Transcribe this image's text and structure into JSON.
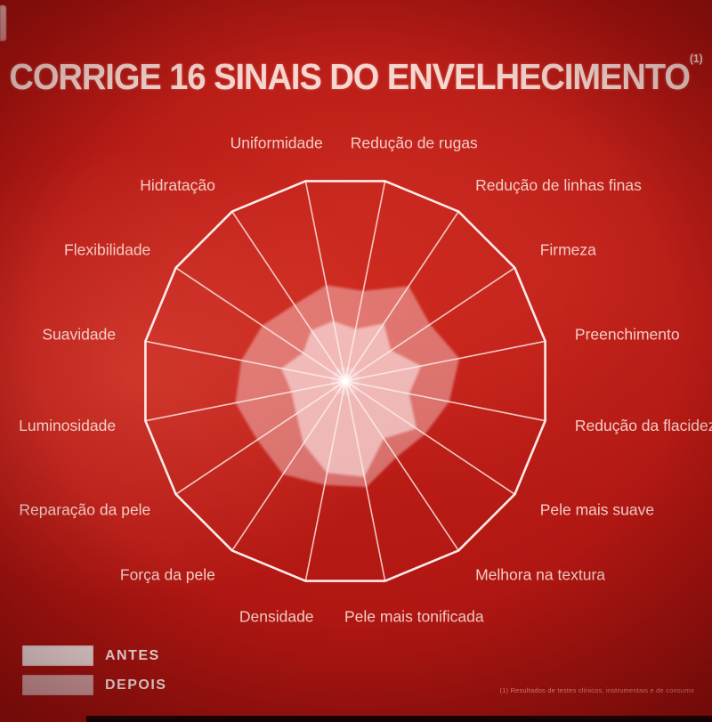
{
  "title": {
    "text": "CORRIGE 16 SINAIS DO ENVELHECIMENTO",
    "superscript": "(1)"
  },
  "footnote": "(1) Resultados de testes clínicos, instrumentais e de consumo",
  "legend": {
    "antes": {
      "label": "ANTES",
      "color": "#f0e0e0"
    },
    "depois": {
      "label": "DEPOIS",
      "color": "#d7a6a8"
    }
  },
  "colors": {
    "background_base": "#a81310",
    "background_light": "#d4423a",
    "background_dark": "#7c0a0b",
    "title_text": "#f6d6cf",
    "axis_label_text": "#f2cdc6",
    "spoke_line": "rgba(255,240,238,0.8)",
    "outline": "rgba(255,246,244,0.95)"
  },
  "chart_data": {
    "type": "radar",
    "title": "CORRIGE 16 SINAIS DO ENVELHECIMENTO (1)",
    "categories": [
      "Uniformidade",
      "Redução de rugas",
      "Redução de linhas finas",
      "Firmeza",
      "Preenchimento",
      "Redução da flacidez",
      "Pele mais suave",
      "Melhora na textura",
      "Pele mais tonificada",
      "Densidade",
      "Força da pele",
      "Reparação da pele",
      "Luminosidade",
      "Suavidade",
      "Flexibilidade",
      "Hidratação"
    ],
    "series": [
      {
        "name": "ANTES",
        "fill": "rgba(255,247,247,0.52)",
        "values": [
          0.3,
          0.26,
          0.34,
          0.27,
          0.38,
          0.32,
          0.42,
          0.34,
          0.48,
          0.46,
          0.37,
          0.29,
          0.27,
          0.32,
          0.25,
          0.3
        ]
      },
      {
        "name": "DEPOIS",
        "fill": "rgba(252,224,224,0.42)",
        "values": [
          0.48,
          0.45,
          0.56,
          0.5,
          0.57,
          0.52,
          0.47,
          0.45,
          0.53,
          0.52,
          0.55,
          0.52,
          0.55,
          0.52,
          0.49,
          0.45
        ]
      }
    ],
    "rlim": [
      0,
      1
    ],
    "axes_count": 16,
    "start_angle_deg": 101.25,
    "angle_step_deg": -22.5,
    "grid": "radial-spokes-only, no concentric rings",
    "legend_position": "bottom-left"
  }
}
